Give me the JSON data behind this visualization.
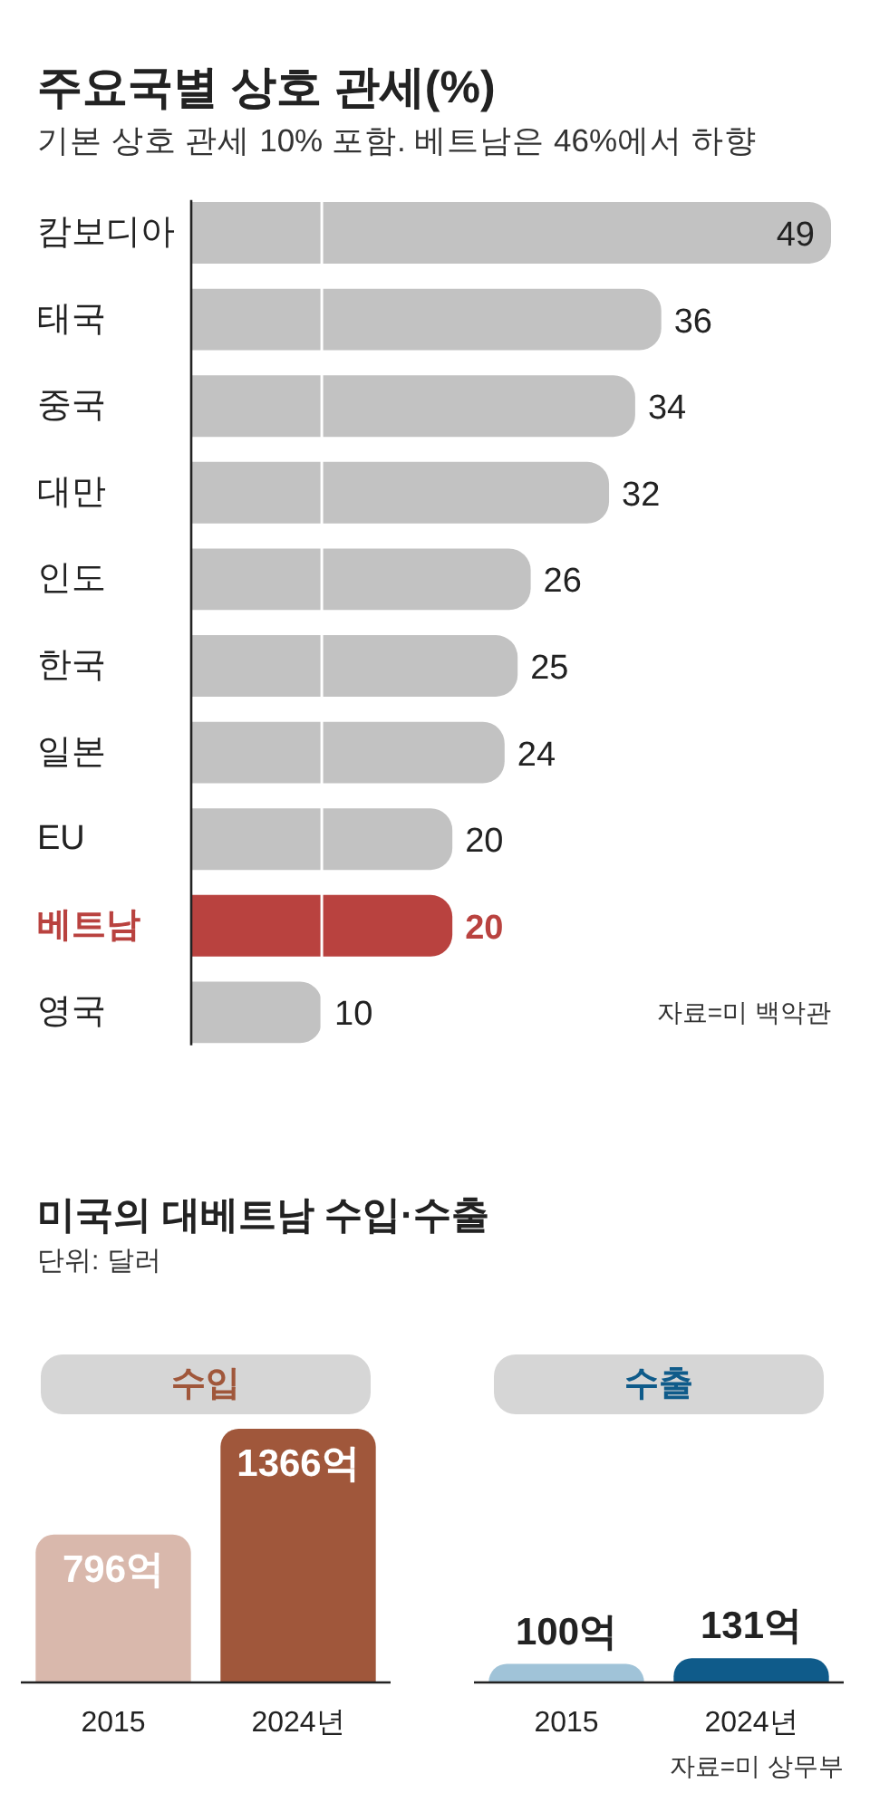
{
  "chart_data": [
    {
      "type": "bar",
      "orientation": "horizontal",
      "title": "주요국별 상호 관세(%)",
      "subtitle": "기본 상호 관세 10% 포함. 베트남은 46%에서 하향",
      "categories": [
        "캄보디아",
        "태국",
        "중국",
        "대만",
        "인도",
        "한국",
        "일본",
        "EU",
        "베트남",
        "영국"
      ],
      "values": [
        49,
        36,
        34,
        32,
        26,
        25,
        24,
        20,
        20,
        10
      ],
      "colors": [
        "#c2c2c2",
        "#c2c2c2",
        "#c2c2c2",
        "#c2c2c2",
        "#c2c2c2",
        "#c2c2c2",
        "#c2c2c2",
        "#c2c2c2",
        "#b9423f",
        "#c2c2c2"
      ],
      "xlim": [
        0,
        49
      ],
      "tick_labels": "y",
      "data_labels": true,
      "ref_lines": [
        {
          "axis": "x",
          "value": 10,
          "color": "#ffffff"
        }
      ],
      "annotations": [
        "자료=미 백악관"
      ]
    },
    {
      "type": "other",
      "title": "미국의 대베트남 수입·수출",
      "subtitle": "단위: 달러"
    },
    {
      "type": "bar",
      "title": "수입",
      "categories": [
        "2015",
        "2024년"
      ],
      "values": [
        796,
        1366
      ],
      "value_labels": [
        "796억",
        "1366억"
      ],
      "colors": [
        "#d9b8ac",
        "#a0573b"
      ],
      "ylim": [
        0,
        1366
      ],
      "tick_labels": "x"
    },
    {
      "type": "bar",
      "title": "수출",
      "categories": [
        "2015",
        "2024년"
      ],
      "values": [
        100,
        131
      ],
      "value_labels": [
        "100억",
        "131억"
      ],
      "colors": [
        "#a0c3d8",
        "#0f5b8a"
      ],
      "tick_labels": "x",
      "annotations": [
        "자료=미 상무부"
      ]
    }
  ]
}
